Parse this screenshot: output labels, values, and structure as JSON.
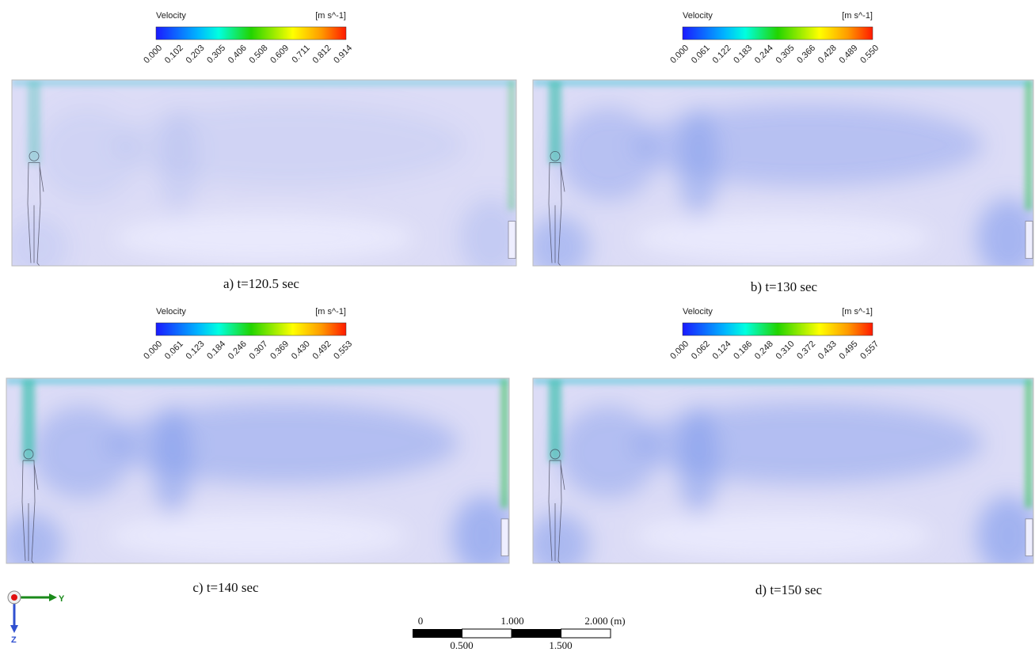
{
  "panels": [
    {
      "legend": {
        "title": "Velocity",
        "unit": "[m s^-1]",
        "ticks": [
          "0.000",
          "0.102",
          "0.203",
          "0.305",
          "0.406",
          "0.508",
          "0.609",
          "0.711",
          "0.812",
          "0.914"
        ]
      },
      "caption": "a) t=120.5 sec"
    },
    {
      "legend": {
        "title": "Velocity",
        "unit": "[m s^-1]",
        "ticks": [
          "0.000",
          "0.061",
          "0.122",
          "0.183",
          "0.244",
          "0.305",
          "0.366",
          "0.428",
          "0.489",
          "0.550"
        ]
      },
      "caption": "b) t=130 sec"
    },
    {
      "legend": {
        "title": "Velocity",
        "unit": "[m s^-1]",
        "ticks": [
          "0.000",
          "0.061",
          "0.123",
          "0.184",
          "0.246",
          "0.307",
          "0.369",
          "0.430",
          "0.492",
          "0.553"
        ]
      },
      "caption": "c) t=140 sec"
    },
    {
      "legend": {
        "title": "Velocity",
        "unit": "[m s^-1]",
        "ticks": [
          "0.000",
          "0.062",
          "0.124",
          "0.186",
          "0.248",
          "0.310",
          "0.372",
          "0.433",
          "0.495",
          "0.557"
        ]
      },
      "caption": "d) t=150 sec"
    }
  ],
  "axes": {
    "y": "Y",
    "z": "Z"
  },
  "scale_bar": {
    "top": [
      "0",
      "1.000",
      "2.000 (m)"
    ],
    "bottom": [
      "0.500",
      "1.500"
    ]
  }
}
